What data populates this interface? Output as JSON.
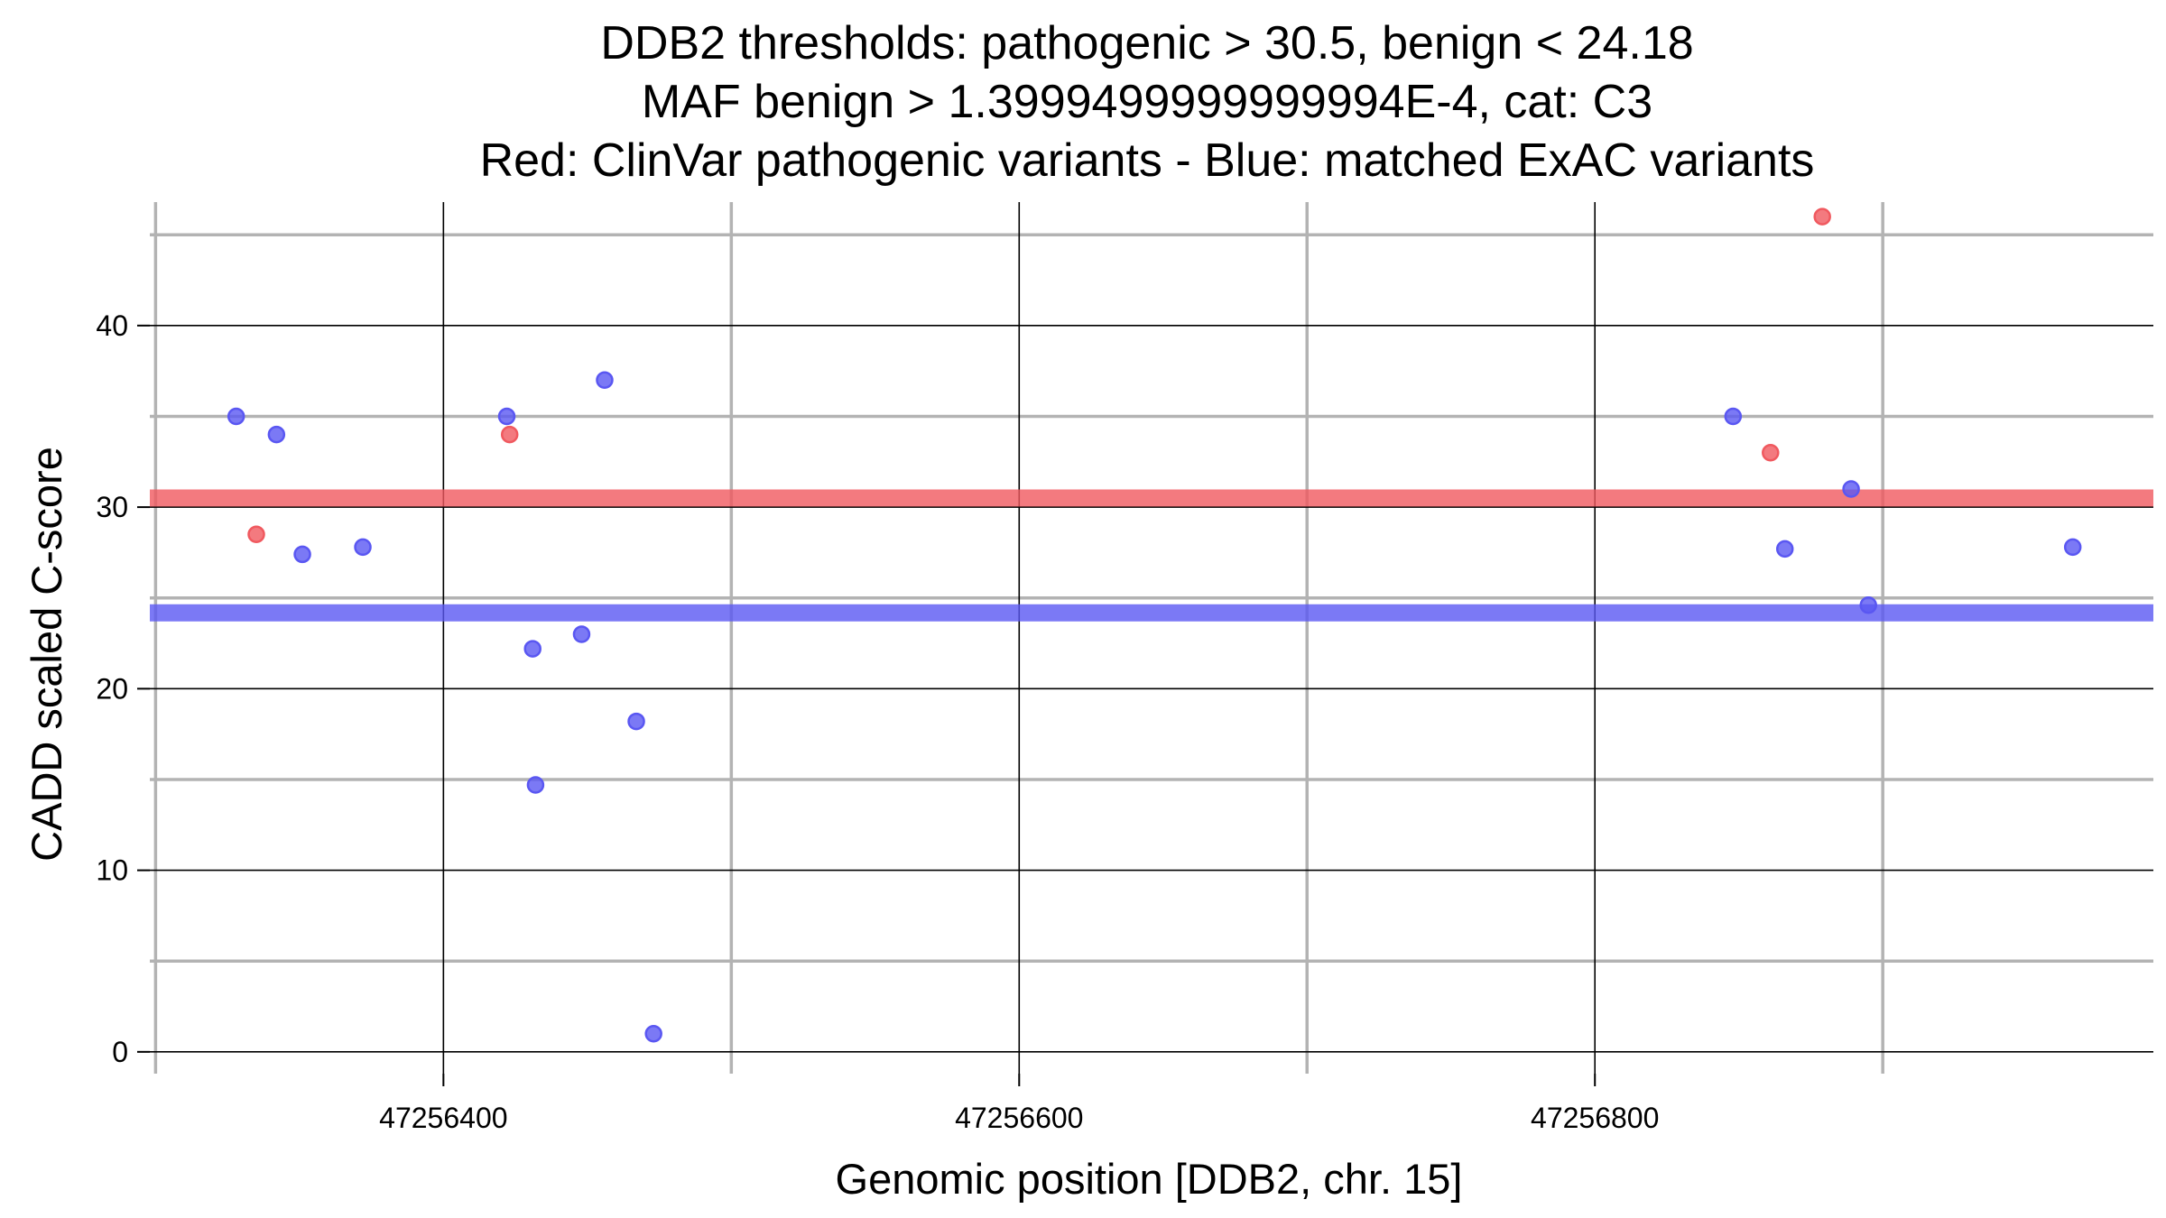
{
  "chart_data": {
    "type": "scatter",
    "title": [
      "DDB2 thresholds: pathogenic > 30.5, benign < 24.18",
      "MAF benign > 1.3999499999999994E-4, cat: C3",
      "Red: ClinVar pathogenic variants - Blue: matched ExAC variants"
    ],
    "xlabel": "Genomic position [DDB2, chr. 15]",
    "ylabel": "CADD scaled C-score",
    "xlim": [
      47256298,
      47256994
    ],
    "ylim": [
      -1.2,
      46.8
    ],
    "x_ticks": [
      47256400,
      47256600,
      47256800
    ],
    "x_tick_labels": [
      "47256400",
      "47256600",
      "47256800"
    ],
    "y_ticks": [
      0,
      10,
      20,
      30,
      40
    ],
    "y_tick_labels": [
      "0",
      "10",
      "20",
      "30",
      "40"
    ],
    "grid": true,
    "thresholds": [
      {
        "name": "pathogenic",
        "value": 30.5,
        "color": "#f0595f"
      },
      {
        "name": "benign",
        "value": 24.18,
        "color": "#5a57f2"
      }
    ],
    "series": [
      {
        "name": "ClinVar pathogenic variants",
        "color": "#f0595f",
        "points": [
          {
            "x": 47256335,
            "y": 28.5
          },
          {
            "x": 47256423,
            "y": 34.0
          },
          {
            "x": 47256861,
            "y": 33.0
          },
          {
            "x": 47256879,
            "y": 46.0
          }
        ]
      },
      {
        "name": "matched ExAC variants",
        "color": "#5a57f2",
        "points": [
          {
            "x": 47256328,
            "y": 35.0
          },
          {
            "x": 47256342,
            "y": 34.0
          },
          {
            "x": 47256351,
            "y": 27.4
          },
          {
            "x": 47256372,
            "y": 27.8
          },
          {
            "x": 47256422,
            "y": 35.0
          },
          {
            "x": 47256431,
            "y": 22.2
          },
          {
            "x": 47256432,
            "y": 14.7
          },
          {
            "x": 47256448,
            "y": 23.0
          },
          {
            "x": 47256456,
            "y": 37.0
          },
          {
            "x": 47256467,
            "y": 18.2
          },
          {
            "x": 47256473,
            "y": 1.0
          },
          {
            "x": 47256848,
            "y": 35.0
          },
          {
            "x": 47256866,
            "y": 27.7
          },
          {
            "x": 47256889,
            "y": 31.0
          },
          {
            "x": 47256895,
            "y": 24.6
          },
          {
            "x": 47256966,
            "y": 27.8
          }
        ]
      }
    ]
  }
}
